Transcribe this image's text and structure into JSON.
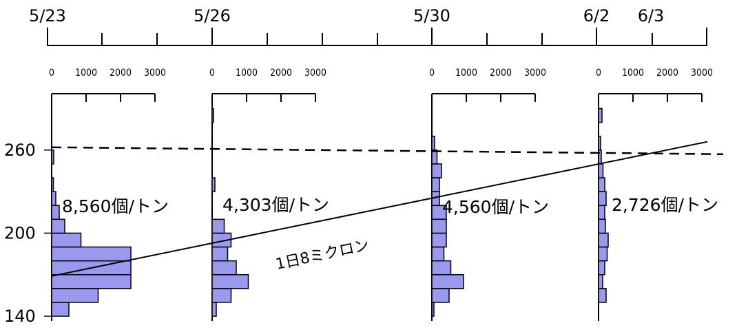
{
  "chart_data": {
    "type": "bar",
    "orientation": "horizontal-histograms",
    "timeline": {
      "labels": [
        "5/23",
        "5/26",
        "5/30",
        "6/2",
        "6/3"
      ]
    },
    "y_axis": {
      "tick_labels": [
        "260",
        "200",
        "140"
      ],
      "ticks": [
        260,
        200,
        140
      ],
      "range": [
        140,
        290
      ],
      "bin_width": 10
    },
    "x_axis": {
      "tick_labels": [
        "0",
        "1000",
        "2000",
        "3000"
      ],
      "range": [
        0,
        3000
      ]
    },
    "threshold": {
      "value": 260,
      "style": "dashed"
    },
    "growth_line": {
      "label": "1日8ミクロン",
      "start_value": 170,
      "end_value": 268
    },
    "series": [
      {
        "date": "5/23",
        "count_label": "8,560個/トン",
        "bins": [
          {
            "y": 140,
            "value": 500
          },
          {
            "y": 150,
            "value": 1350
          },
          {
            "y": 160,
            "value": 2300
          },
          {
            "y": 170,
            "value": 2300
          },
          {
            "y": 180,
            "value": 2300
          },
          {
            "y": 190,
            "value": 850
          },
          {
            "y": 200,
            "value": 380
          },
          {
            "y": 210,
            "value": 220
          },
          {
            "y": 220,
            "value": 120
          },
          {
            "y": 230,
            "value": 50
          },
          {
            "y": 250,
            "value": 60
          }
        ]
      },
      {
        "date": "5/26",
        "count_label": "4,303個/トン",
        "bins": [
          {
            "y": 140,
            "value": 120
          },
          {
            "y": 150,
            "value": 550
          },
          {
            "y": 160,
            "value": 1050
          },
          {
            "y": 170,
            "value": 700
          },
          {
            "y": 180,
            "value": 450
          },
          {
            "y": 190,
            "value": 550
          },
          {
            "y": 200,
            "value": 350
          },
          {
            "y": 230,
            "value": 80
          },
          {
            "y": 280,
            "value": 40
          }
        ]
      },
      {
        "date": "5/30",
        "count_label": "4,560個/トン",
        "bins": [
          {
            "y": 140,
            "value": 60
          },
          {
            "y": 150,
            "value": 500
          },
          {
            "y": 160,
            "value": 920
          },
          {
            "y": 170,
            "value": 550
          },
          {
            "y": 180,
            "value": 350
          },
          {
            "y": 190,
            "value": 420
          },
          {
            "y": 200,
            "value": 420
          },
          {
            "y": 210,
            "value": 420
          },
          {
            "y": 220,
            "value": 220
          },
          {
            "y": 230,
            "value": 220
          },
          {
            "y": 240,
            "value": 280
          },
          {
            "y": 250,
            "value": 150
          },
          {
            "y": 260,
            "value": 80
          }
        ]
      },
      {
        "date": "6/2",
        "count_label": "2,726個/トン",
        "bins": [
          {
            "y": 150,
            "value": 220
          },
          {
            "y": 160,
            "value": 120
          },
          {
            "y": 170,
            "value": 180
          },
          {
            "y": 180,
            "value": 250
          },
          {
            "y": 190,
            "value": 280
          },
          {
            "y": 200,
            "value": 200
          },
          {
            "y": 210,
            "value": 180
          },
          {
            "y": 220,
            "value": 220
          },
          {
            "y": 230,
            "value": 180
          },
          {
            "y": 240,
            "value": 130
          },
          {
            "y": 250,
            "value": 80
          },
          {
            "y": 260,
            "value": 60
          },
          {
            "y": 280,
            "value": 100
          }
        ]
      }
    ],
    "colors": {
      "bar_fill": "#9999ee",
      "bar_stroke": "#000000",
      "line": "#000000"
    }
  }
}
